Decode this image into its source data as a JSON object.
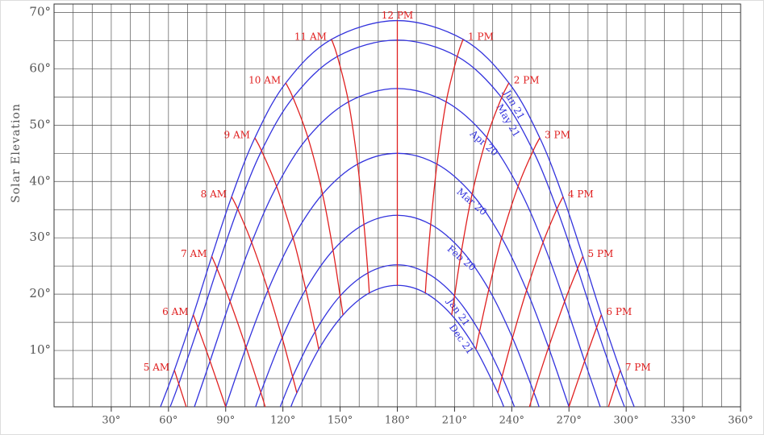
{
  "chart_data": {
    "type": "line",
    "y_label": "Solar Elevation",
    "xlim": [
      0,
      360
    ],
    "ylim": [
      0,
      71.5
    ],
    "xticks": [
      {
        "value": 30,
        "label": "30°"
      },
      {
        "value": 60,
        "label": "60°"
      },
      {
        "value": 90,
        "label": "90°"
      },
      {
        "value": 120,
        "label": "120°"
      },
      {
        "value": 150,
        "label": "150°"
      },
      {
        "value": 180,
        "label": "180°"
      },
      {
        "value": 210,
        "label": "210°"
      },
      {
        "value": 240,
        "label": "240°"
      },
      {
        "value": 270,
        "label": "270°"
      },
      {
        "value": 300,
        "label": "300°"
      },
      {
        "value": 330,
        "label": "330°"
      },
      {
        "value": 360,
        "label": "360°"
      }
    ],
    "yticks": [
      {
        "value": 10,
        "label": "10°"
      },
      {
        "value": 20,
        "label": "20°"
      },
      {
        "value": 30,
        "label": "30°"
      },
      {
        "value": 40,
        "label": "40°"
      },
      {
        "value": 50,
        "label": "50°"
      },
      {
        "value": 60,
        "label": "60°"
      },
      {
        "value": 70,
        "label": "70°"
      }
    ],
    "xgrid": [
      10,
      20,
      30,
      40,
      50,
      60,
      70,
      80,
      90,
      100,
      110,
      120,
      130,
      140,
      150,
      160,
      170,
      180,
      190,
      200,
      210,
      220,
      230,
      240,
      250,
      260,
      270,
      280,
      290,
      300,
      310,
      320,
      330,
      340,
      350
    ],
    "ygrid": [
      5,
      10,
      15,
      20,
      25,
      30,
      35,
      40,
      45,
      50,
      55,
      60,
      65,
      70
    ],
    "grid": true,
    "date_color": "#3333dd",
    "hour_color": "#e02020",
    "series": [
      {
        "name": "Jun 21",
        "x": [
          55.8,
          63.1,
          73.0,
          82.7,
          93.1,
          105.3,
          121.5,
          145.5,
          180,
          214.5,
          238.5,
          254.7,
          266.9,
          277.3,
          287.0,
          296.9,
          304.2
        ],
        "values": [
          0,
          6.51,
          16.34,
          26.69,
          37.28,
          47.74,
          57.49,
          65.24,
          68.56,
          65.24,
          57.49,
          47.74,
          37.28,
          26.69,
          16.34,
          6.51,
          0
        ]
      },
      {
        "name": "May 21",
        "x": [
          60.9,
          65.4,
          75.5,
          85.5,
          96.3,
          108.8,
          125.3,
          148.6,
          180,
          211.4,
          234.7,
          251.2,
          263.7,
          274.5,
          284.5,
          294.6,
          299.1
        ],
        "values": [
          0,
          4.08,
          14.06,
          24.51,
          35.11,
          45.45,
          54.89,
          62.19,
          65.1,
          62.19,
          54.89,
          45.45,
          35.11,
          24.51,
          14.06,
          4.08,
          0
        ]
      },
      {
        "name": "Apr 20",
        "x": [
          73.6,
          81.8,
          92.3,
          103.6,
          116.7,
          133.1,
          154.4,
          180,
          205.6,
          226.9,
          243.3,
          256.4,
          267.7,
          278.2,
          286.4
        ],
        "values": [
          0,
          8.11,
          18.68,
          29.18,
          39.12,
          47.82,
          54.13,
          56.5,
          54.13,
          47.82,
          39.12,
          29.18,
          18.68,
          8.11,
          0
        ]
      },
      {
        "name": "Mar 20",
        "x": [
          90,
          100.7,
          112.2,
          125.3,
          140.8,
          159.2,
          180,
          200.8,
          219.2,
          234.7,
          247.8,
          259.3,
          270
        ],
        "values": [
          0,
          10.55,
          20.7,
          30,
          37.76,
          43.08,
          45,
          43.08,
          37.76,
          30,
          20.7,
          10.55,
          0
        ]
      },
      {
        "name": "Feb 20",
        "x": [
          105.7,
          108.4,
          119.6,
          132.0,
          146.3,
          162.5,
          180,
          197.5,
          213.7,
          228.0,
          240.4,
          251.6,
          254.3
        ],
        "values": [
          0,
          2.56,
          12.25,
          20.85,
          27.79,
          32.38,
          34,
          32.38,
          27.79,
          20.85,
          12.25,
          2.56,
          0
        ]
      },
      {
        "name": "Jan 21",
        "x": [
          118.6,
          125.1,
          136.9,
          150.0,
          164.6,
          180,
          195.4,
          210.0,
          223.1,
          234.9,
          241.4
        ],
        "values": [
          0,
          5.35,
          13.35,
          19.68,
          23.77,
          25.2,
          23.77,
          19.68,
          13.35,
          5.35,
          0
        ]
      },
      {
        "name": "Dec 21",
        "x": [
          124.2,
          127.3,
          138.8,
          151.5,
          165.3,
          180,
          194.7,
          208.5,
          221.2,
          232.7,
          235.8
        ],
        "values": [
          0,
          2.47,
          10.22,
          16.3,
          20.21,
          21.56,
          20.21,
          16.3,
          10.22,
          2.47,
          0
        ]
      }
    ],
    "hour_lines": [
      {
        "name": "5 AM",
        "x": [
          63.1,
          65.4,
          69.3
        ],
        "values": [
          6.51,
          4.08,
          0
        ]
      },
      {
        "name": "6 AM",
        "x": [
          73.0,
          75.5,
          81.8,
          90
        ],
        "values": [
          16.34,
          14.06,
          8.11,
          0
        ]
      },
      {
        "name": "7 AM",
        "x": [
          82.7,
          85.5,
          92.3,
          100.7,
          108.4,
          110.7
        ],
        "values": [
          26.69,
          24.51,
          18.68,
          10.55,
          2.56,
          0
        ]
      },
      {
        "name": "8 AM",
        "x": [
          93.1,
          96.3,
          103.6,
          112.2,
          119.6,
          125.1,
          127.3
        ],
        "values": [
          37.28,
          35.11,
          29.18,
          20.7,
          12.25,
          5.35,
          2.47
        ]
      },
      {
        "name": "9 AM",
        "x": [
          105.3,
          108.8,
          116.7,
          125.3,
          132.0,
          136.9,
          138.8
        ],
        "values": [
          47.74,
          45.45,
          39.12,
          30,
          20.85,
          13.35,
          10.22
        ]
      },
      {
        "name": "10 AM",
        "x": [
          121.5,
          125.3,
          133.1,
          140.8,
          146.3,
          150.0,
          151.5
        ],
        "values": [
          57.49,
          54.89,
          47.82,
          37.76,
          27.79,
          19.68,
          16.3
        ]
      },
      {
        "name": "11 AM",
        "x": [
          145.5,
          148.6,
          154.4,
          159.2,
          162.5,
          164.6,
          165.3
        ],
        "values": [
          65.24,
          62.19,
          54.13,
          43.08,
          32.38,
          23.77,
          20.21
        ]
      },
      {
        "name": "12 PM",
        "x": [
          180,
          180,
          180,
          180,
          180,
          180,
          180
        ],
        "values": [
          68.56,
          65.1,
          56.5,
          45,
          34,
          25.2,
          21.56
        ]
      },
      {
        "name": "1 PM",
        "x": [
          214.5,
          211.4,
          205.6,
          200.8,
          197.5,
          195.4,
          194.7
        ],
        "values": [
          65.24,
          62.19,
          54.13,
          43.08,
          32.38,
          23.77,
          20.21
        ]
      },
      {
        "name": "2 PM",
        "x": [
          238.5,
          234.7,
          226.9,
          219.2,
          213.7,
          210.0,
          208.5
        ],
        "values": [
          57.49,
          54.89,
          47.82,
          37.76,
          27.79,
          19.68,
          16.3
        ]
      },
      {
        "name": "3 PM",
        "x": [
          254.7,
          251.2,
          243.3,
          234.7,
          228.0,
          223.1,
          221.2
        ],
        "values": [
          47.74,
          45.45,
          39.12,
          30,
          20.85,
          13.35,
          10.22
        ]
      },
      {
        "name": "4 PM",
        "x": [
          266.9,
          263.7,
          256.4,
          247.8,
          240.4,
          234.9,
          232.7
        ],
        "values": [
          37.28,
          35.11,
          29.18,
          20.7,
          12.25,
          5.35,
          2.47
        ]
      },
      {
        "name": "5 PM",
        "x": [
          277.3,
          274.5,
          267.7,
          259.3,
          251.6,
          249.3
        ],
        "values": [
          26.69,
          24.51,
          18.68,
          10.55,
          2.56,
          0
        ]
      },
      {
        "name": "6 PM",
        "x": [
          287.0,
          284.5,
          278.2,
          270
        ],
        "values": [
          16.34,
          14.06,
          8.11,
          0
        ]
      },
      {
        "name": "7 PM",
        "x": [
          296.9,
          294.6,
          290.7
        ],
        "values": [
          6.51,
          4.08,
          0
        ]
      }
    ]
  }
}
